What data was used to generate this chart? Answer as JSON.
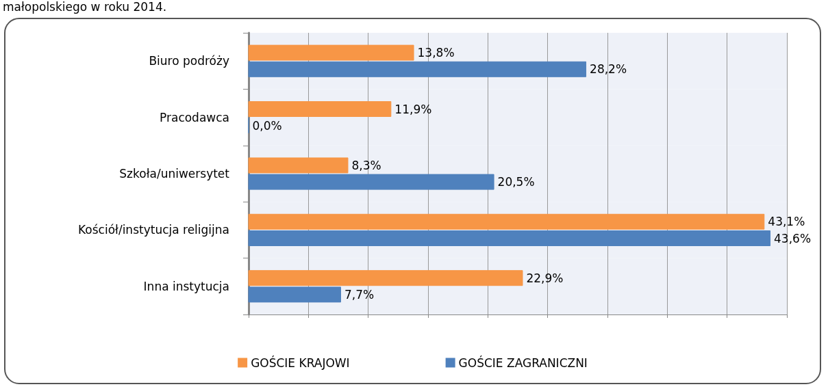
{
  "chart_data": {
    "type": "bar",
    "orientation": "horizontal",
    "title": "małopolskiego w roku 2014.",
    "categories": [
      "Biuro podróży",
      "Pracodawca",
      "Szkoła/uniwersytet",
      "Kościół/instytucja religijna",
      "Inna instytucja"
    ],
    "series": [
      {
        "name": "GOŚCIE KRAJOWI",
        "color": "#f79646",
        "values": [
          13.8,
          11.9,
          8.3,
          43.1,
          22.9
        ],
        "value_labels": [
          "13,8%",
          "11,9%",
          "8,3%",
          "43,1%",
          "22,9%"
        ]
      },
      {
        "name": "GOŚCIE ZAGRANICZNI",
        "color": "#4f81bd",
        "values": [
          28.2,
          0.0,
          20.5,
          43.6,
          7.7
        ],
        "value_labels": [
          "28,2%",
          "0,0%",
          "20,5%",
          "43,6%",
          "7,7%"
        ]
      }
    ],
    "xlim": [
      0,
      45
    ],
    "xticks": [
      {
        "value": 0,
        "label": null
      },
      {
        "value": 5,
        "label": null
      },
      {
        "value": 10,
        "label": null
      },
      {
        "value": 15,
        "label": null
      },
      {
        "value": 20,
        "label": null
      },
      {
        "value": 25,
        "label": null
      },
      {
        "value": 30,
        "label": null
      },
      {
        "value": 35,
        "label": null
      },
      {
        "value": 40,
        "label": null
      },
      {
        "value": 45,
        "label": null
      }
    ],
    "grid": "x",
    "legend": "bottom",
    "tick_labels": "y"
  }
}
